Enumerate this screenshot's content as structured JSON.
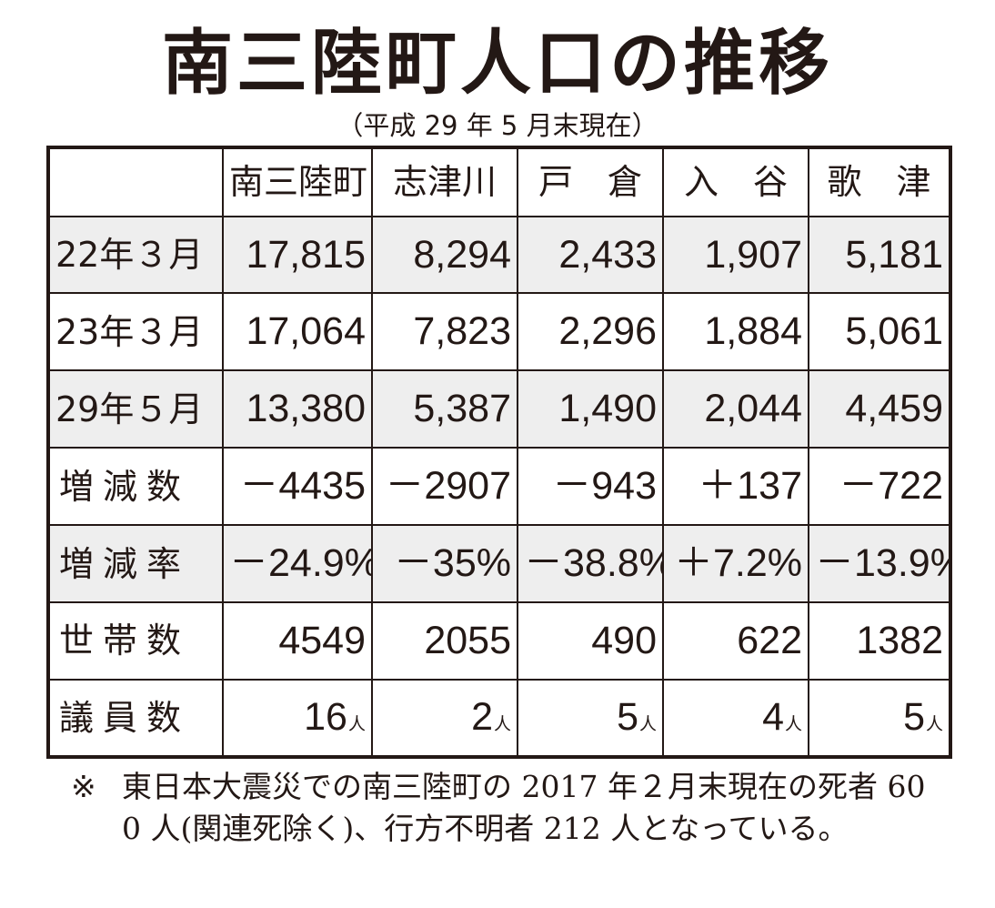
{
  "title": "南三陸町人口の推移",
  "subtitle": "（平成 29 年 5 月末現在）",
  "table": {
    "columns": [
      "南三陸町",
      "志津川",
      "戸　倉",
      "入　谷",
      "歌　津"
    ],
    "rows": [
      {
        "label": "22年３月",
        "cells": [
          "17,815",
          "8,294",
          "2,433",
          "1,907",
          "5,181"
        ]
      },
      {
        "label": "23年３月",
        "cells": [
          "17,064",
          "7,823",
          "2,296",
          "1,884",
          "5,061"
        ]
      },
      {
        "label": "29年５月",
        "cells": [
          "13,380",
          "5,387",
          "1,490",
          "2,044",
          "4,459"
        ]
      },
      {
        "label": "増減数",
        "cells": [
          "－4435",
          "－2907",
          "－943",
          "＋137",
          "－722"
        ]
      },
      {
        "label": "増減率",
        "cells": [
          "－24.9%",
          "－35%",
          "－38.8%",
          "＋7.2%",
          "－13.9%"
        ]
      },
      {
        "label": "世帯数",
        "cells": [
          "4549",
          "2055",
          "490",
          "622",
          "1382"
        ]
      },
      {
        "label": "議員数",
        "cells": [
          "16",
          "2",
          "5",
          "4",
          "5"
        ],
        "unit": "人"
      }
    ]
  },
  "note": {
    "mark": "※",
    "text": "東日本大震災での南三陸町の 2017 年２月末現在の死者 600 人(関連死除く)、行方不明者 212 人となっている。"
  },
  "colors": {
    "ink": "#231815",
    "shade": "#eeeeee"
  }
}
